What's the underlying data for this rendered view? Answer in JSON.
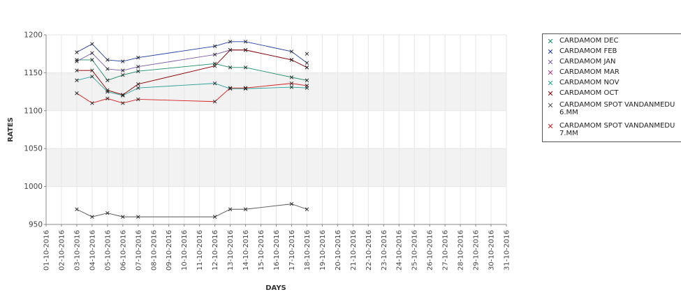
{
  "chart_data": {
    "type": "line",
    "xlabel": "DAYS",
    "ylabel": "RATES",
    "ylim": [
      950,
      1200
    ],
    "yticks": [
      950,
      1000,
      1050,
      1100,
      1150,
      1200
    ],
    "grid": true,
    "legend_position": "right",
    "categories": [
      "01-10-2016",
      "02-10-2016",
      "03-10-2016",
      "04-10-2016",
      "05-10-2016",
      "06-10-2016",
      "07-10-2016",
      "08-10-2016",
      "09-10-2016",
      "10-10-2016",
      "11-10-2016",
      "12-10-2016",
      "13-10-2016",
      "14-10-2016",
      "15-10-2016",
      "16-10-2016",
      "17-10-2016",
      "18-10-2016",
      "19-10-2016",
      "20-10-2016",
      "21-10-2016",
      "22-10-2016",
      "23-10-2016",
      "24-10-2016",
      "25-10-2016",
      "26-10-2016",
      "27-10-2016",
      "28-10-2016",
      "29-10-2016",
      "30-10-2016",
      "31-10-2016"
    ],
    "series": [
      {
        "name": "CARDAMOM DEC",
        "color": "#1a8a6a",
        "x": [
          "03-10-2016",
          "04-10-2016",
          "05-10-2016",
          "06-10-2016",
          "07-10-2016",
          "12-10-2016",
          "13-10-2016",
          "14-10-2016",
          "17-10-2016",
          "18-10-2016"
        ],
        "values": [
          1167,
          1167,
          1140,
          1147,
          1152,
          1162,
          1157,
          1157,
          1144,
          1140
        ]
      },
      {
        "name": "CARDAMOM FEB",
        "color": "#1f3f9f",
        "x": [
          "03-10-2016",
          "04-10-2016",
          "05-10-2016",
          "06-10-2016",
          "07-10-2016",
          "12-10-2016",
          "13-10-2016",
          "14-10-2016",
          "17-10-2016",
          "18-10-2016"
        ],
        "values": [
          1177,
          1188,
          1167,
          1165,
          1170,
          1185,
          1191,
          1191,
          1178,
          1163
        ]
      },
      {
        "name": "CARDAMOM JAN",
        "color": "#7a5aa8",
        "x": [
          "03-10-2016",
          "04-10-2016",
          "05-10-2016",
          "06-10-2016",
          "07-10-2016",
          "12-10-2016",
          "13-10-2016",
          "14-10-2016",
          "17-10-2016",
          "18-10-2016"
        ],
        "values": [
          1165,
          1176,
          1155,
          1153,
          1158,
          1174,
          1180,
          1180,
          1167,
          1157
        ]
      },
      {
        "name": "CARDAMOM MAR",
        "color": "#b0308a",
        "x": [
          "18-10-2016"
        ],
        "values": [
          1175
        ]
      },
      {
        "name": "CARDAMOM NOV",
        "color": "#2aa098",
        "x": [
          "03-10-2016",
          "04-10-2016",
          "05-10-2016",
          "06-10-2016",
          "07-10-2016",
          "12-10-2016",
          "13-10-2016",
          "14-10-2016",
          "17-10-2016",
          "18-10-2016"
        ],
        "values": [
          1140,
          1145,
          1125,
          1120,
          1130,
          1136,
          1129,
          1129,
          1131,
          1130
        ]
      },
      {
        "name": "CARDAMOM OCT",
        "color": "#8b0000",
        "x": [
          "03-10-2016",
          "04-10-2016",
          "05-10-2016",
          "06-10-2016",
          "07-10-2016",
          "12-10-2016",
          "13-10-2016",
          "14-10-2016",
          "17-10-2016",
          "18-10-2016"
        ],
        "values": [
          1153,
          1153,
          1127,
          1121,
          1135,
          1159,
          1180,
          1180,
          1167,
          1157
        ]
      },
      {
        "name": "CARDAMOM SPOT VANDANMEDU\n6.MM",
        "color": "#555555",
        "x": [
          "03-10-2016",
          "04-10-2016",
          "05-10-2016",
          "06-10-2016",
          "07-10-2016",
          "12-10-2016",
          "13-10-2016",
          "14-10-2016",
          "17-10-2016",
          "18-10-2016"
        ],
        "values": [
          970,
          960,
          965,
          960,
          960,
          960,
          970,
          970,
          977,
          970
        ]
      },
      {
        "name": "CARDAMOM SPOT VANDANMEDU\n7.MM",
        "color": "#d42020",
        "x": [
          "03-10-2016",
          "04-10-2016",
          "05-10-2016",
          "06-10-2016",
          "07-10-2016",
          "12-10-2016",
          "13-10-2016",
          "14-10-2016",
          "17-10-2016",
          "18-10-2016"
        ],
        "values": [
          1123,
          1110,
          1116,
          1110,
          1115,
          1112,
          1130,
          1130,
          1136,
          1133
        ]
      }
    ]
  }
}
